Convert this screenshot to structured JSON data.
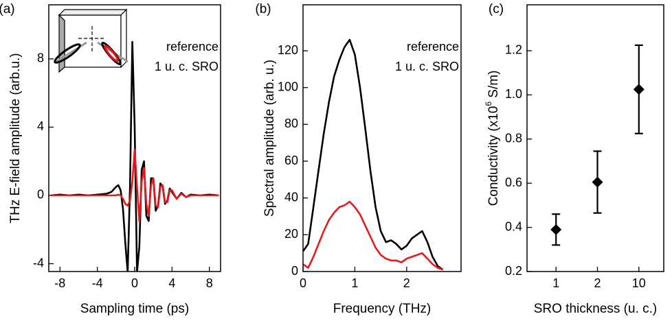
{
  "chart_data": [
    {
      "type": "line",
      "panel": "(a)",
      "x_label": "Sampling time (ps)",
      "y_label": "THz E-field amplitude (arb.u.)",
      "xlim": [
        -9.2,
        9.2
      ],
      "xticks": [
        -8,
        -4,
        0,
        4,
        8
      ],
      "ylim": [
        -4.46,
        11.17
      ],
      "yticks": [
        -4,
        0,
        4,
        8
      ],
      "x": [
        -9,
        -8,
        -7,
        -6,
        -5,
        -4,
        -3,
        -2.5,
        -2,
        -1.75,
        -1.5,
        -1.25,
        -1,
        -0.75,
        -0.5,
        -0.25,
        0,
        0.25,
        0.5,
        0.75,
        1,
        1.25,
        1.5,
        1.75,
        2,
        2.25,
        2.5,
        2.75,
        3,
        3.25,
        3.5,
        3.75,
        4,
        4.5,
        5,
        5.5,
        6,
        7,
        8,
        9
      ],
      "series": [
        {
          "name": "reference",
          "color": "#000000",
          "values": [
            0,
            0.05,
            0,
            0.05,
            0,
            0.05,
            0.1,
            0.2,
            0.5,
            0.6,
            0.3,
            -0.8,
            -2.8,
            -4.5,
            0.5,
            9.0,
            4.0,
            -4.5,
            -3.0,
            1.5,
            2.0,
            -1.2,
            -1.5,
            1.0,
            1.0,
            -0.9,
            -0.6,
            0.7,
            0.5,
            -0.5,
            -0.3,
            0.4,
            0.2,
            -0.2,
            0.15,
            -0.1,
            0.05,
            0,
            0.05,
            0
          ]
        },
        {
          "name": "1 u. c. SRO",
          "color": "#e41a1c",
          "values": [
            0,
            0,
            0,
            0,
            0,
            0,
            0,
            0,
            0,
            0.05,
            0,
            -0.2,
            -0.5,
            -0.6,
            -0.3,
            0.8,
            2.7,
            0.5,
            -1.5,
            0.8,
            1.6,
            -0.5,
            -1.2,
            0.6,
            1.0,
            -0.6,
            -0.7,
            0.5,
            0.6,
            -0.4,
            -0.4,
            0.3,
            0.3,
            -0.2,
            0.1,
            -0.1,
            0,
            0,
            0,
            0
          ]
        }
      ]
    },
    {
      "type": "line",
      "panel": "(b)",
      "x_label": "Frequency (THz)",
      "y_label": "Spectral amplitude (arb. u.)",
      "xlim": [
        0,
        3.05
      ],
      "xticks": [
        0,
        1,
        2
      ],
      "ylim": [
        0,
        145
      ],
      "yticks": [
        0,
        20,
        40,
        60,
        80,
        100,
        120
      ],
      "x": [
        0,
        0.1,
        0.2,
        0.3,
        0.4,
        0.5,
        0.6,
        0.7,
        0.8,
        0.9,
        1.0,
        1.1,
        1.2,
        1.3,
        1.4,
        1.5,
        1.6,
        1.7,
        1.8,
        1.9,
        2.0,
        2.1,
        2.2,
        2.3,
        2.4,
        2.5,
        2.6,
        2.7
      ],
      "series": [
        {
          "name": "reference",
          "color": "#000000",
          "values": [
            11,
            15,
            35,
            55,
            75,
            92,
            106,
            115,
            122,
            126,
            118,
            100,
            78,
            55,
            35,
            22,
            16,
            17,
            15,
            12,
            14,
            18,
            20,
            22,
            16,
            8,
            3,
            1
          ]
        },
        {
          "name": "1 u. c. SRO",
          "color": "#e41a1c",
          "values": [
            4,
            2,
            8,
            15,
            22,
            28,
            32,
            35,
            36,
            38,
            35,
            31,
            25,
            19,
            13,
            9,
            7,
            6,
            6,
            5,
            7,
            8,
            9,
            10,
            7,
            4,
            2,
            1
          ]
        }
      ]
    },
    {
      "type": "errorbar",
      "panel": "(c)",
      "x_label": "SRO thickness (u. c.)",
      "y_label": [
        "Conductivity (x10",
        "6",
        " S/m)"
      ],
      "categories": [
        "1",
        "2",
        "10"
      ],
      "values": [
        0.39,
        0.605,
        1.025
      ],
      "errors": [
        0.07,
        0.14,
        0.2
      ],
      "color": "#000000",
      "ylim": [
        0.2,
        1.408
      ],
      "yticks": [
        {
          "value": 0.2,
          "label": "0.2"
        },
        {
          "value": 0.4,
          "label": "0.4"
        },
        {
          "value": 0.6,
          "label": "0.6"
        },
        {
          "value": 0.8,
          "label": "0.8"
        },
        {
          "value": 1.0,
          "label": "1.0"
        },
        {
          "value": 1.2,
          "label": "1.2"
        }
      ]
    }
  ]
}
